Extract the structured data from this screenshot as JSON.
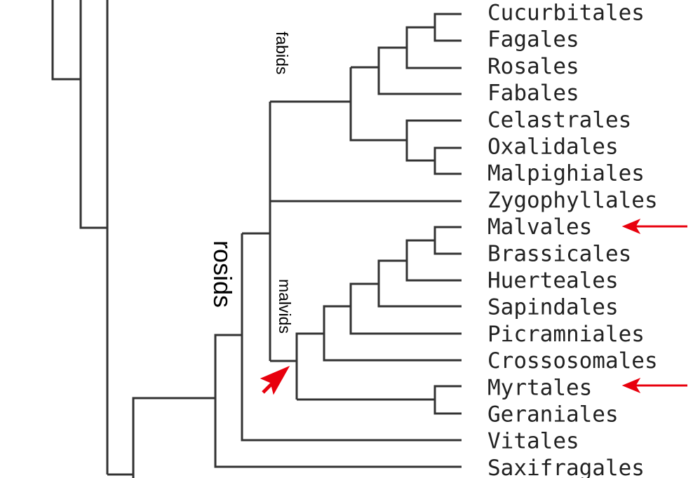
{
  "tree": {
    "leaves": [
      "Cucurbitales",
      "Fagales",
      "Rosales",
      "Fabales",
      "Celastrales",
      "Oxalidales",
      "Malpighiales",
      "Zygophyllales",
      "Malvales",
      "Brassicales",
      "Huerteales",
      "Sapindales",
      "Picramniales",
      "Crossosomales",
      "Myrtales",
      "Geraniales",
      "Vitales",
      "Saxifragales"
    ],
    "clades": {
      "fabids": "fabids",
      "rosids": "rosids",
      "malvids": "malvids"
    }
  }
}
